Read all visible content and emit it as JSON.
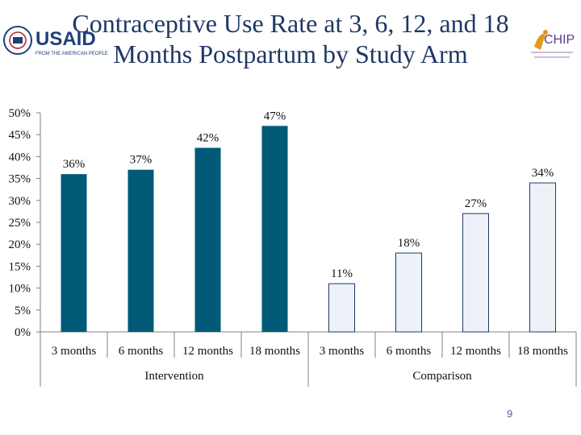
{
  "slide": {
    "title_line1": "Contraceptive Use Rate at 3, 6, 12, and 18",
    "title_line2": "Months Postpartum by Study Arm",
    "page_number": "9",
    "logos": {
      "left_text": "USAID",
      "left_tagline": "FROM THE AMERICAN PEOPLE",
      "right_text": "CHIP"
    }
  },
  "chart_data": {
    "type": "bar",
    "title": "Contraceptive Use Rate at 3, 6, 12, and 18 Months Postpartum by Study Arm",
    "ylim": [
      0,
      50
    ],
    "ytick_labels": [
      "0%",
      "5%",
      "10%",
      "15%",
      "20%",
      "25%",
      "30%",
      "35%",
      "40%",
      "45%",
      "50%"
    ],
    "groups": [
      "Intervention",
      "Comparison"
    ],
    "categories": [
      "3 months",
      "6 months",
      "12 months",
      "18 months",
      "3 months",
      "6 months",
      "12 months",
      "18 months"
    ],
    "values": [
      36,
      37,
      42,
      47,
      11,
      18,
      27,
      34
    ],
    "value_labels": [
      "36%",
      "37%",
      "42%",
      "47%",
      "11%",
      "18%",
      "27%",
      "34%"
    ],
    "group_of_bar": [
      0,
      0,
      0,
      0,
      1,
      1,
      1,
      1
    ],
    "colors": {
      "intervention": "#005a78",
      "comparison": "#edf2f9"
    }
  }
}
